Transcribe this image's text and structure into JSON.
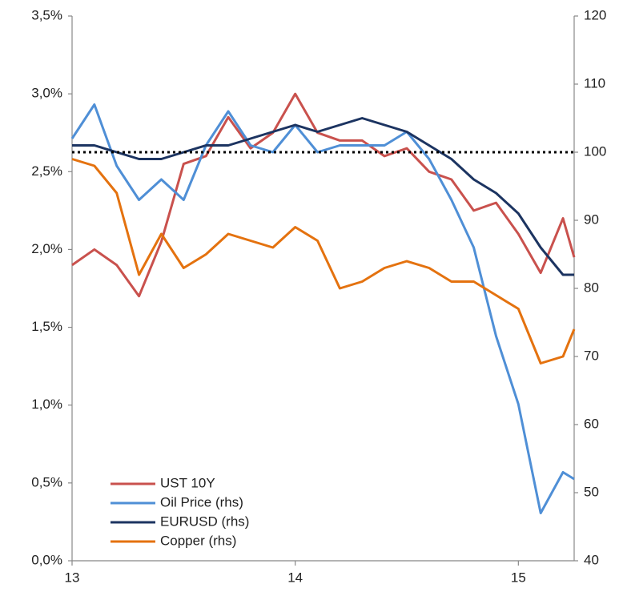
{
  "chart_data": {
    "type": "line",
    "x": [
      13,
      13.1,
      13.2,
      13.3,
      13.4,
      13.5,
      13.6,
      13.7,
      13.8,
      13.9,
      14,
      14.1,
      14.2,
      14.3,
      14.4,
      14.5,
      14.6,
      14.7,
      14.8,
      14.9,
      15,
      15.1,
      15.2,
      15.25
    ],
    "series": [
      {
        "name": "UST 10Y",
        "color": "#c9514d",
        "values": [
          1.9,
          2.0,
          1.9,
          1.7,
          2.05,
          2.55,
          2.6,
          2.85,
          2.65,
          2.75,
          3.0,
          2.75,
          2.7,
          2.7,
          2.6,
          2.65,
          2.5,
          2.45,
          2.25,
          2.3,
          2.1,
          1.85,
          2.2,
          1.95
        ]
      },
      {
        "name": "Oil Price (rhs)",
        "color": "#4f8fd6",
        "axis": "y2",
        "values": [
          102,
          107,
          98,
          93,
          96,
          93,
          101,
          106,
          101,
          100,
          104,
          100,
          101,
          101,
          101,
          103,
          99,
          93,
          86,
          73,
          63,
          47,
          53,
          52
        ]
      },
      {
        "name": "EURUSD (rhs)",
        "color": "#1c3461",
        "axis": "y2",
        "values": [
          101,
          101,
          100,
          99,
          99,
          100,
          101,
          101,
          102,
          103,
          104,
          103,
          104,
          105,
          104,
          103,
          101,
          99,
          96,
          94,
          91,
          86,
          82,
          82
        ]
      },
      {
        "name": "Copper (rhs)",
        "color": "#e4720f",
        "axis": "y2",
        "values": [
          99,
          98,
          94,
          82,
          88,
          83,
          85,
          88,
          87,
          86,
          89,
          87,
          80,
          81,
          83,
          84,
          83,
          81,
          81,
          79,
          77,
          69,
          70,
          74
        ]
      }
    ],
    "xlim": [
      13,
      15.25
    ],
    "xticks": [
      13,
      14,
      15
    ],
    "ylim": [
      0,
      3.5
    ],
    "yticks": [
      {
        "value": 0,
        "label": "0,0%"
      },
      {
        "value": 0.5,
        "label": "0,5%"
      },
      {
        "value": 1,
        "label": "1,0%"
      },
      {
        "value": 1.5,
        "label": "1,5%"
      },
      {
        "value": 2,
        "label": "2,0%"
      },
      {
        "value": 2.5,
        "label": "2,5%"
      },
      {
        "value": 3,
        "label": "3,0%"
      },
      {
        "value": 3.5,
        "label": "3,5%"
      }
    ],
    "y2lim": [
      40,
      120
    ],
    "y2ticks": [
      40,
      50,
      60,
      70,
      80,
      90,
      100,
      110,
      120
    ],
    "reference_line": {
      "value": 100,
      "axis": "y2"
    },
    "legend": "lower left"
  }
}
